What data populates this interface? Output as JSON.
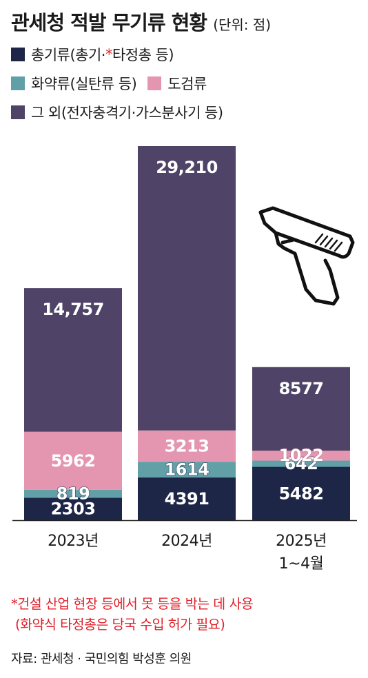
{
  "title": "관세청 적발 무기류 현황",
  "unit": "(단위: 점)",
  "legend": {
    "firearms_pre": "총기류(총기·",
    "firearms_star": "*",
    "firearms_post": "타정총 등)",
    "explosives": "화약류(실탄류 등)",
    "blades": "도검류",
    "others": "그 외(전자충격기·가스분사기 등)"
  },
  "colors": {
    "firearms": "#1e2647",
    "explosives": "#62a0a8",
    "blades": "#e495b0",
    "others": "#4f4468",
    "note": "#e0202a"
  },
  "chart_data": {
    "type": "bar",
    "stacked": true,
    "categories": [
      "2023년",
      "2024년",
      "2025년\n1~4월"
    ],
    "series": [
      {
        "name": "총기류(총기·*타정총 등)",
        "values": [
          2303,
          4391,
          5482
        ],
        "labels": [
          "2303",
          "4391",
          "5482"
        ]
      },
      {
        "name": "화약류(실탄류 등)",
        "values": [
          819,
          1614,
          642
        ],
        "labels": [
          "819",
          "1614",
          "642"
        ]
      },
      {
        "name": "도검류",
        "values": [
          5962,
          3213,
          1022
        ],
        "labels": [
          "5962",
          "3213",
          "1022"
        ]
      },
      {
        "name": "그 외(전자충격기·가스분사기 등)",
        "values": [
          14757,
          29210,
          8577
        ],
        "labels": [
          "14,757",
          "29,210",
          "8577"
        ]
      }
    ],
    "ylim": [
      0,
      38428
    ],
    "grid": false,
    "legend_position": "top-left"
  },
  "category_labels": [
    [
      "2023년"
    ],
    [
      "2024년"
    ],
    [
      "2025년",
      "1~4월"
    ]
  ],
  "icon": "pistol-icon",
  "note_line1": "*건설 산업 현장 등에서 못 등을 박는 데 사용",
  "note_line2": "(화약식 타정총은 당국 수입 허가 필요)",
  "source": "자료: 관세청 · 국민의힘 박성훈 의원"
}
